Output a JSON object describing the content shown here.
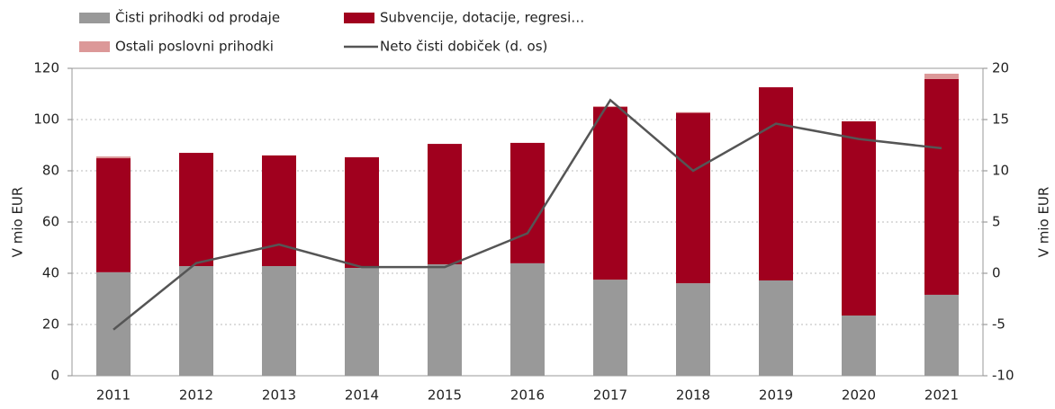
{
  "chart_data": {
    "type": "bar",
    "categories": [
      "2011",
      "2012",
      "2013",
      "2014",
      "2015",
      "2016",
      "2017",
      "2018",
      "2019",
      "2020",
      "2021"
    ],
    "series": [
      {
        "name": "Čisti prihodki od prodaje",
        "color": "#999999",
        "values": [
          40.4,
          42.8,
          42.8,
          42.1,
          43.5,
          43.9,
          37.5,
          36.1,
          37.2,
          23.5,
          31.6
        ]
      },
      {
        "name": "Subvencije, dotacije, regresi…",
        "color": "#a0001e",
        "values": [
          44.5,
          44.2,
          43.2,
          43.2,
          47,
          47,
          67.4,
          66.5,
          75.4,
          75.8,
          84.2
        ]
      },
      {
        "name": "Ostali poslovni prihodki",
        "color": "#dc9898",
        "values": [
          0.7,
          0,
          0,
          0,
          0,
          0,
          0.3,
          0.3,
          0,
          0,
          2.1
        ]
      },
      {
        "name": "Neto čisti dobiček (d. os)",
        "color": "#555555",
        "type": "line",
        "axis": "y2",
        "values": [
          -5.5,
          1,
          2.8,
          0.6,
          0.6,
          3.9,
          16.9,
          10,
          14.6,
          13.1,
          12.2
        ]
      }
    ],
    "ylabel": "V mio EUR",
    "y2label": "V mio EUR",
    "ylim": [
      0,
      120
    ],
    "yticks": [
      0,
      20,
      40,
      60,
      80,
      100,
      120
    ],
    "y2lim": [
      -10,
      20
    ],
    "y2ticks": [
      -10,
      -5,
      0,
      5,
      10,
      15,
      20
    ],
    "grid": true,
    "stacked": true
  }
}
